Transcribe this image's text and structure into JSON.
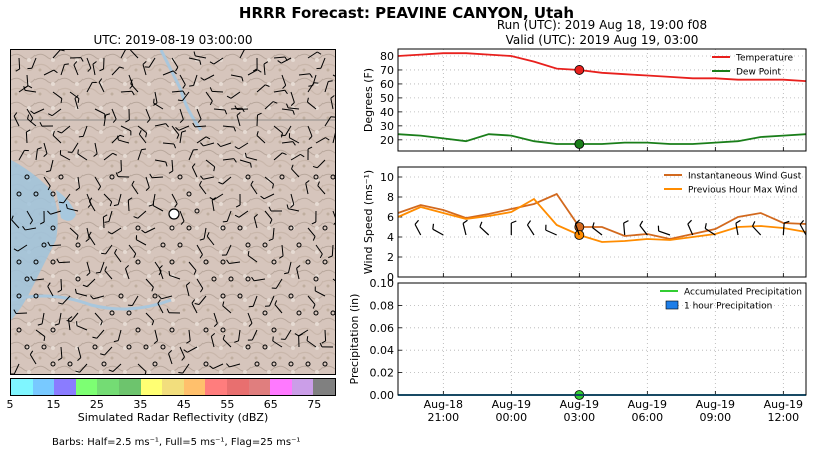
{
  "title": "HRRR Forecast: PEAVINE CANYON, Utah",
  "run_line": "Run (UTC): 2019 Aug 18, 19:00 f08",
  "valid_line": "Valid (UTC): 2019 Aug 19, 03:00",
  "map": {
    "title": "UTC: 2019-08-19 03:00:00",
    "colorbar_label": "Simulated Radar Reflectivity (dBZ)",
    "colorbar_ticks": [
      "5",
      "15",
      "25",
      "35",
      "45",
      "55",
      "65",
      "75"
    ],
    "colorbar_colors": [
      "#7ff6ff",
      "#78c9ff",
      "#8a7cff",
      "#7dff73",
      "#74dc74",
      "#6dc46d",
      "#ffff73",
      "#f2de7d",
      "#ffc06c",
      "#ff7d7d",
      "#e86f6f",
      "#e07e7e",
      "#ff79ff",
      "#cb9ee8",
      "#808080"
    ],
    "barbs_note": "Barbs: Half=2.5 ms⁻¹, Full=5 ms⁻¹, Flag=25 ms⁻¹"
  },
  "x_tick_labels": [
    {
      "day": "Aug-18",
      "time": "21:00"
    },
    {
      "day": "Aug-19",
      "time": "00:00"
    },
    {
      "day": "Aug-19",
      "time": "03:00"
    },
    {
      "day": "Aug-19",
      "time": "06:00"
    },
    {
      "day": "Aug-19",
      "time": "09:00"
    },
    {
      "day": "Aug-19",
      "time": "12:00"
    }
  ],
  "chart_data": [
    {
      "type": "line",
      "ylabel": "Degrees (F)",
      "ylim": [
        12,
        85
      ],
      "yticks": [
        20,
        30,
        40,
        50,
        60,
        70,
        80
      ],
      "x": [
        "2019-08-18 19:00",
        "2019-08-18 20:00",
        "2019-08-18 21:00",
        "2019-08-18 22:00",
        "2019-08-18 23:00",
        "2019-08-19 00:00",
        "2019-08-19 01:00",
        "2019-08-19 02:00",
        "2019-08-19 03:00",
        "2019-08-19 04:00",
        "2019-08-19 05:00",
        "2019-08-19 06:00",
        "2019-08-19 07:00",
        "2019-08-19 08:00",
        "2019-08-19 09:00",
        "2019-08-19 10:00",
        "2019-08-19 11:00",
        "2019-08-19 12:00",
        "2019-08-19 13:00"
      ],
      "series": [
        {
          "name": "Temperature",
          "color": "#e8201d",
          "values": [
            80,
            81,
            82,
            82,
            81,
            80,
            76,
            71,
            70,
            68,
            67,
            66,
            65,
            64,
            64,
            63,
            63,
            63,
            62
          ]
        },
        {
          "name": "Dew Point",
          "color": "#1a7e1a",
          "values": [
            24,
            23,
            21,
            19,
            24,
            23,
            19,
            17,
            17,
            17,
            18,
            18,
            17,
            17,
            18,
            19,
            22,
            23,
            24
          ]
        }
      ],
      "highlight_x": "2019-08-19 03:00",
      "legend": "top-right",
      "grid": true
    },
    {
      "type": "line",
      "ylabel": "Wind Speed (ms⁻¹)",
      "ylim": [
        0,
        11
      ],
      "yticks": [
        0,
        2,
        4,
        6,
        8,
        10
      ],
      "x": [
        "2019-08-18 19:00",
        "2019-08-18 20:00",
        "2019-08-18 21:00",
        "2019-08-18 22:00",
        "2019-08-18 23:00",
        "2019-08-19 00:00",
        "2019-08-19 01:00",
        "2019-08-19 02:00",
        "2019-08-19 03:00",
        "2019-08-19 04:00",
        "2019-08-19 05:00",
        "2019-08-19 06:00",
        "2019-08-19 07:00",
        "2019-08-19 08:00",
        "2019-08-19 09:00",
        "2019-08-19 10:00",
        "2019-08-19 11:00",
        "2019-08-19 12:00",
        "2019-08-19 13:00"
      ],
      "series": [
        {
          "name": "Instantaneous Wind Gust",
          "color": "#d2691e",
          "values": [
            6.4,
            7.2,
            6.7,
            5.9,
            6.3,
            6.8,
            7.3,
            8.3,
            5.0,
            5.0,
            4.1,
            4.3,
            3.8,
            4.3,
            4.8,
            6.0,
            6.4,
            5.4,
            5.3
          ]
        },
        {
          "name": "Previous Hour Max Wind",
          "color": "#ff8c00",
          "values": [
            6.0,
            7.0,
            6.4,
            5.8,
            6.1,
            6.5,
            7.8,
            5.2,
            4.2,
            3.5,
            3.6,
            3.8,
            3.7,
            4.0,
            4.3,
            5.0,
            5.1,
            4.9,
            4.5
          ]
        }
      ],
      "highlight_x": "2019-08-19 03:00",
      "legend": "top-right",
      "grid": true
    },
    {
      "type": "line",
      "ylabel": "Precipitation (in)",
      "ylim": [
        0,
        0.1
      ],
      "yticks": [
        0.0,
        0.02,
        0.04,
        0.06,
        0.08,
        0.1
      ],
      "x": [
        "2019-08-18 19:00",
        "2019-08-19 13:00"
      ],
      "series": [
        {
          "name": "Accumulated Precipitation",
          "color": "#32cd32",
          "values": [
            0,
            0
          ]
        },
        {
          "name": "1 hour Precipitation",
          "color": "#1e7ee8",
          "values": [
            0,
            0
          ]
        }
      ],
      "highlight_x": "2019-08-19 03:00",
      "legend": "top-right",
      "grid": true
    }
  ]
}
